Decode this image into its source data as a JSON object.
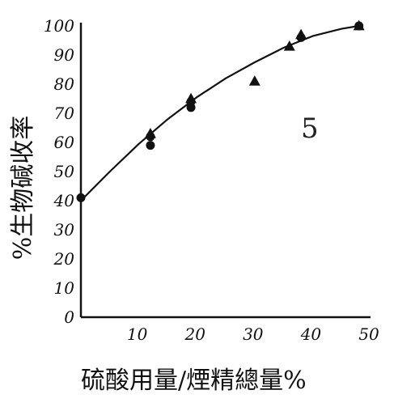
{
  "chart_data": {
    "type": "scatter",
    "title": "",
    "xlabel": "硫酸用量/煙精總量%",
    "ylabel": "%生物碱收率",
    "xlim": [
      0,
      50
    ],
    "ylim": [
      0,
      100
    ],
    "xticks": [
      "10",
      "20",
      "30",
      "40",
      "50"
    ],
    "yticks": [
      "0",
      "10",
      "20",
      "30",
      "40",
      "50",
      "60",
      "70",
      "80",
      "90",
      "100"
    ],
    "grid": false,
    "legend": "none",
    "annotation": "5",
    "series": [
      {
        "marker": "circle",
        "points": [
          [
            0,
            41
          ],
          [
            12,
            62
          ],
          [
            12,
            59
          ],
          [
            19,
            72
          ],
          [
            19,
            74
          ],
          [
            38,
            96
          ],
          [
            48,
            100
          ]
        ]
      },
      {
        "marker": "triangle",
        "points": [
          [
            12,
            63
          ],
          [
            19,
            75
          ],
          [
            30,
            81
          ],
          [
            36,
            93
          ],
          [
            38,
            97
          ],
          [
            48,
            100
          ]
        ]
      }
    ],
    "curve": {
      "x": [
        0,
        5,
        10,
        15,
        20,
        25,
        30,
        35,
        40,
        45,
        48
      ],
      "y": [
        40,
        50,
        59.5,
        68,
        75.5,
        82,
        87.5,
        92.5,
        96.5,
        99,
        100
      ]
    },
    "colors": {
      "ink": "#111111"
    }
  }
}
